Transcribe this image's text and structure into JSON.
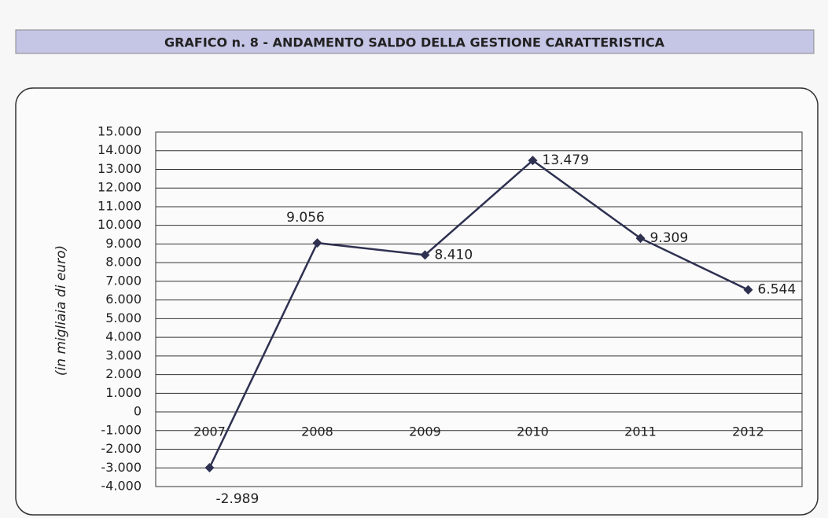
{
  "chart_data": {
    "type": "line",
    "title": "GRAFICO n. 8 -  ANDAMENTO SALDO DELLA GESTIONE CARATTERISTICA",
    "y_label": "(in migliaia di euro)",
    "categories": [
      "2007",
      "2008",
      "2009",
      "2010",
      "2011",
      "2012"
    ],
    "series": [
      {
        "color": "#2e3150",
        "values": [
          -2989,
          9056,
          8410,
          13479,
          9309,
          6544
        ],
        "value_labels": [
          "-2.989",
          "9.056",
          "8.410",
          "13.479",
          "9.309",
          "6.544"
        ]
      }
    ],
    "ylim": [
      -4000,
      15000
    ],
    "yticks": [
      {
        "value": -4000,
        "label": "-4.000"
      },
      {
        "value": -3000,
        "label": "-3.000"
      },
      {
        "value": -2000,
        "label": "-2.000"
      },
      {
        "value": -1000,
        "label": "-1.000"
      },
      0,
      {
        "value": 1000,
        "label": "1.000"
      },
      {
        "value": 2000,
        "label": "2.000"
      },
      {
        "value": 3000,
        "label": "3.000"
      },
      {
        "value": 4000,
        "label": "4.000"
      },
      {
        "value": 5000,
        "label": "5.000"
      },
      {
        "value": 6000,
        "label": "6.000"
      },
      {
        "value": 7000,
        "label": "7.000"
      },
      {
        "value": 8000,
        "label": "8.000"
      },
      {
        "value": 9000,
        "label": "9.000"
      },
      {
        "value": 10000,
        "label": "10.000"
      },
      {
        "value": 11000,
        "label": "11.000"
      },
      {
        "value": 12000,
        "label": "12.000"
      },
      {
        "value": 13000,
        "label": "13.000"
      },
      {
        "value": 14000,
        "label": "14.000"
      },
      {
        "value": 15000,
        "label": "15.000"
      }
    ],
    "grid": true
  }
}
